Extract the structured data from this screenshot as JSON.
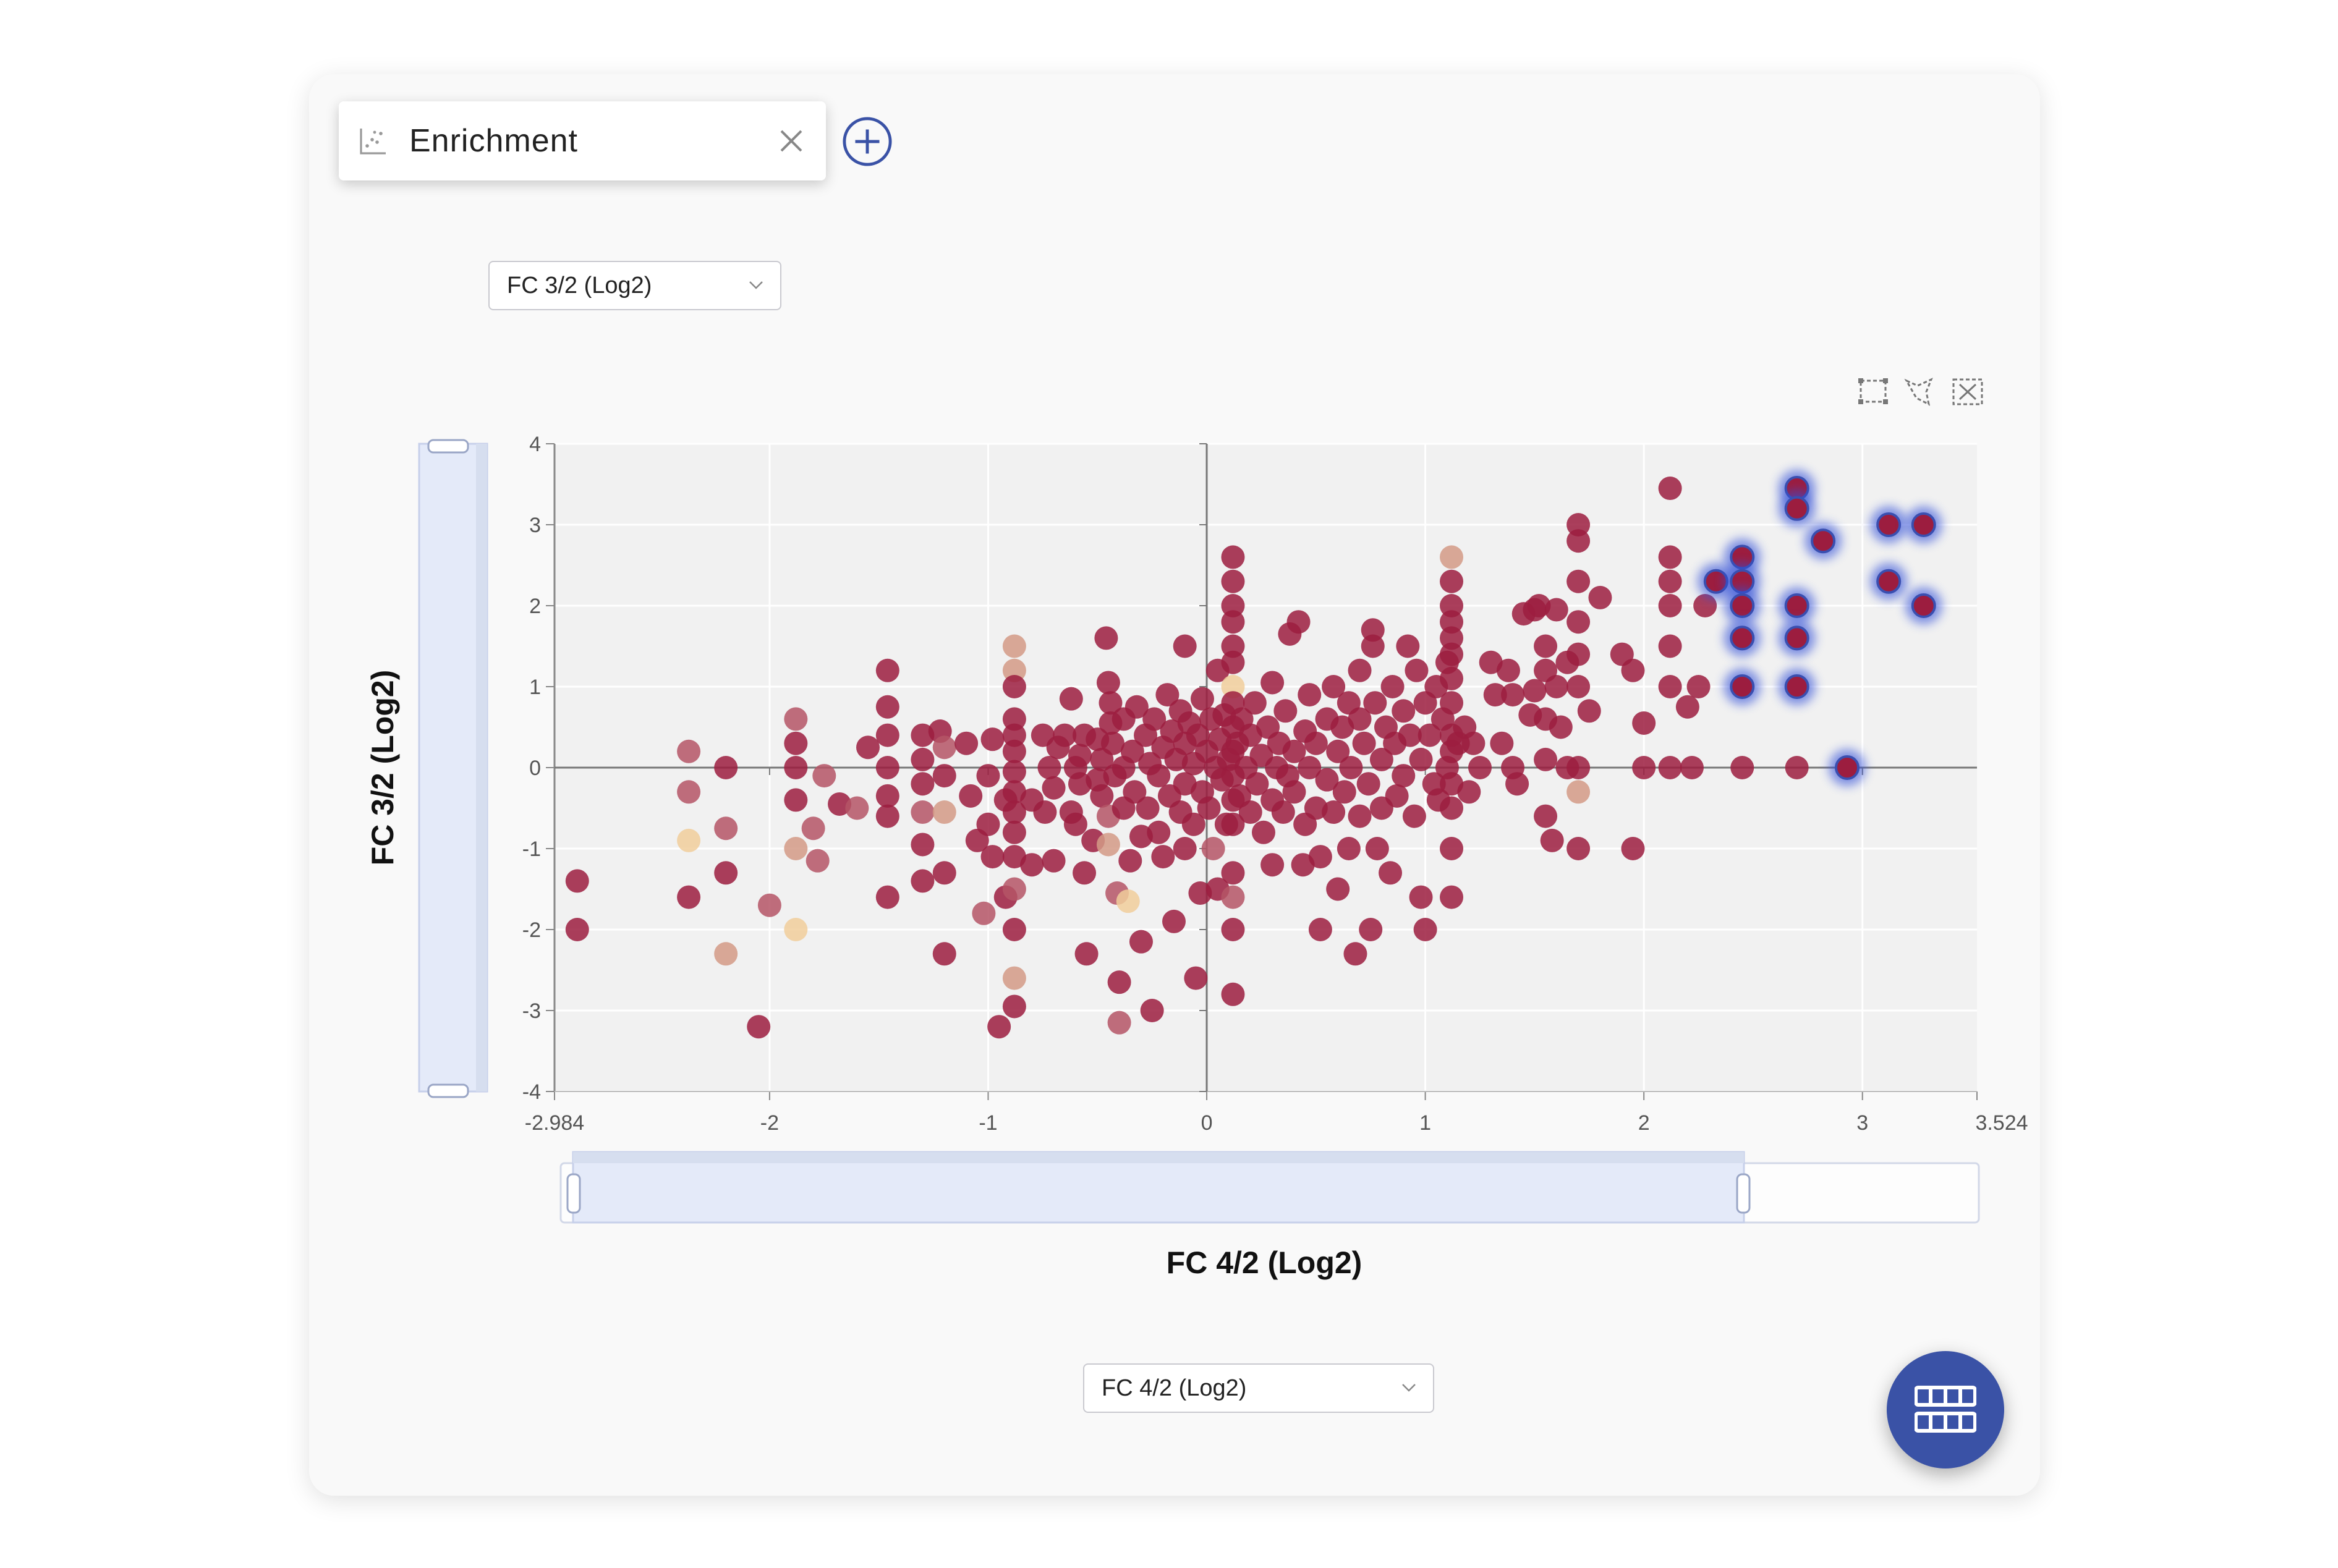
{
  "tab": {
    "title": "Enrichment",
    "icon": "scatter-chart-icon",
    "close_icon": "close-icon"
  },
  "add_tab_icon": "plus-circle-icon",
  "y_selector": {
    "value": "FC 3/2 (Log2)"
  },
  "x_selector": {
    "value": "FC 4/2 (Log2)"
  },
  "toolbar_icons": [
    "box-select-icon",
    "lasso-select-icon",
    "clear-selection-icon"
  ],
  "fab_icon": "table-view-icon",
  "colors": {
    "accent": "#3a52a6",
    "zoom_fill": "#e4eaf9",
    "selected_glow": "#3050d8"
  },
  "chart_data": {
    "type": "scatter",
    "xlabel": "FC 4/2 (Log2)",
    "ylabel": "FC 3/2 (Log2)",
    "xlim": [
      -2.984,
      3.524
    ],
    "ylim": [
      -4,
      4
    ],
    "x_ticks": [
      "-2.984",
      "-2",
      "-1",
      "0",
      "1",
      "2",
      "3",
      "3.524"
    ],
    "y_ticks": [
      "4",
      "3",
      "2",
      "1",
      "0",
      "-1",
      "-2",
      "-3",
      "-4"
    ],
    "grid": true,
    "x_zoom_range": [
      -2.92,
      2.45
    ],
    "y_zoom_range": [
      -4,
      4
    ],
    "color_scale": [
      "#f1ce9b",
      "#d39a86",
      "#b55566",
      "#9c1d3f"
    ],
    "points": [
      [
        -2.88,
        -1.4,
        3
      ],
      [
        -2.88,
        -2.0,
        3
      ],
      [
        -2.37,
        0.2,
        2
      ],
      [
        -2.37,
        -0.3,
        2
      ],
      [
        -2.37,
        -0.9,
        0
      ],
      [
        -2.37,
        -1.6,
        3
      ],
      [
        -2.2,
        0,
        3
      ],
      [
        -2.2,
        -0.75,
        2
      ],
      [
        -2.2,
        -1.3,
        3
      ],
      [
        -2.2,
        -2.3,
        1
      ],
      [
        -2.05,
        -3.2,
        3
      ],
      [
        -2.0,
        -1.7,
        2
      ],
      [
        -1.88,
        0.6,
        2
      ],
      [
        -1.88,
        0.3,
        3
      ],
      [
        -1.88,
        0,
        3
      ],
      [
        -1.88,
        -0.4,
        3
      ],
      [
        -1.88,
        -1.0,
        1
      ],
      [
        -1.88,
        -2.0,
        0
      ],
      [
        -1.8,
        -0.75,
        2
      ],
      [
        -1.78,
        -1.15,
        2
      ],
      [
        -1.75,
        -0.1,
        2
      ],
      [
        -1.68,
        -0.45,
        3
      ],
      [
        -1.6,
        -0.5,
        2
      ],
      [
        -1.55,
        0.25,
        3
      ],
      [
        -1.46,
        1.2,
        3
      ],
      [
        -1.46,
        0.75,
        3
      ],
      [
        -1.46,
        0.4,
        3
      ],
      [
        -1.46,
        0,
        3
      ],
      [
        -1.46,
        -0.35,
        3
      ],
      [
        -1.46,
        -0.6,
        3
      ],
      [
        -1.46,
        -1.6,
        3
      ],
      [
        -1.3,
        0.4,
        3
      ],
      [
        -1.3,
        0.1,
        3
      ],
      [
        -1.3,
        -0.2,
        3
      ],
      [
        -1.3,
        -0.55,
        2
      ],
      [
        -1.3,
        -0.95,
        3
      ],
      [
        -1.3,
        -1.4,
        3
      ],
      [
        -1.22,
        0.45,
        3
      ],
      [
        -1.2,
        0.25,
        2
      ],
      [
        -1.2,
        -0.1,
        3
      ],
      [
        -1.2,
        -0.55,
        1
      ],
      [
        -1.2,
        -1.3,
        3
      ],
      [
        -1.2,
        -2.3,
        3
      ],
      [
        -1.1,
        0.3,
        3
      ],
      [
        -1.08,
        -0.35,
        3
      ],
      [
        -1.05,
        -0.9,
        3
      ],
      [
        -1.02,
        -1.8,
        2
      ],
      [
        -1.0,
        -0.1,
        3
      ],
      [
        -1.0,
        -0.7,
        3
      ],
      [
        -0.98,
        0.35,
        3
      ],
      [
        -0.98,
        -1.1,
        3
      ],
      [
        -0.95,
        -3.2,
        3
      ],
      [
        -0.92,
        -1.6,
        3
      ],
      [
        -0.92,
        -0.4,
        3
      ],
      [
        -0.88,
        1.5,
        1
      ],
      [
        -0.88,
        1.2,
        1
      ],
      [
        -0.88,
        1.0,
        3
      ],
      [
        -0.88,
        0.6,
        3
      ],
      [
        -0.88,
        0.4,
        3
      ],
      [
        -0.88,
        0.2,
        3
      ],
      [
        -0.88,
        -0.05,
        3
      ],
      [
        -0.88,
        -0.3,
        3
      ],
      [
        -0.88,
        -0.55,
        3
      ],
      [
        -0.88,
        -0.8,
        3
      ],
      [
        -0.88,
        -1.1,
        3
      ],
      [
        -0.88,
        -1.5,
        2
      ],
      [
        -0.88,
        -2.0,
        3
      ],
      [
        -0.88,
        -2.6,
        1
      ],
      [
        -0.88,
        -2.95,
        3
      ],
      [
        -0.8,
        -0.4,
        3
      ],
      [
        -0.8,
        -1.2,
        3
      ],
      [
        -0.75,
        0.4,
        3
      ],
      [
        -0.74,
        -0.55,
        3
      ],
      [
        -0.72,
        0,
        3
      ],
      [
        -0.7,
        -0.25,
        3
      ],
      [
        -0.7,
        -1.15,
        3
      ],
      [
        -0.68,
        0.25,
        3
      ],
      [
        -0.65,
        0.4,
        3
      ],
      [
        -0.62,
        -0.55,
        3
      ],
      [
        -0.62,
        0.85,
        3
      ],
      [
        -0.6,
        0,
        3
      ],
      [
        -0.6,
        -0.7,
        3
      ],
      [
        -0.58,
        -0.2,
        3
      ],
      [
        -0.58,
        0.15,
        3
      ],
      [
        -0.56,
        0.4,
        3
      ],
      [
        -0.56,
        -1.3,
        3
      ],
      [
        -0.55,
        -2.3,
        3
      ],
      [
        -0.52,
        -0.9,
        3
      ],
      [
        -0.5,
        0.35,
        3
      ],
      [
        -0.5,
        -0.15,
        3
      ],
      [
        -0.48,
        -0.35,
        3
      ],
      [
        -0.48,
        0.1,
        3
      ],
      [
        -0.45,
        -0.6,
        2
      ],
      [
        -0.45,
        -0.95,
        1
      ],
      [
        -0.44,
        0.55,
        3
      ],
      [
        -0.43,
        0.3,
        3
      ],
      [
        -0.42,
        -0.1,
        3
      ],
      [
        -0.41,
        -1.55,
        2
      ],
      [
        -0.4,
        -2.65,
        3
      ],
      [
        -0.4,
        -3.15,
        2
      ],
      [
        -0.45,
        1.05,
        3
      ],
      [
        -0.46,
        1.6,
        3
      ],
      [
        -0.44,
        0.8,
        3
      ],
      [
        -0.38,
        0,
        3
      ],
      [
        -0.38,
        -0.5,
        3
      ],
      [
        -0.38,
        0.6,
        3
      ],
      [
        -0.36,
        -1.65,
        0
      ],
      [
        -0.35,
        -1.15,
        3
      ],
      [
        -0.34,
        0.2,
        3
      ],
      [
        -0.33,
        -0.3,
        3
      ],
      [
        -0.32,
        0.75,
        3
      ],
      [
        -0.3,
        -0.85,
        3
      ],
      [
        -0.3,
        -2.15,
        3
      ],
      [
        -0.28,
        0.4,
        3
      ],
      [
        -0.27,
        -0.5,
        3
      ],
      [
        -0.26,
        0.05,
        3
      ],
      [
        -0.25,
        -3.0,
        3
      ],
      [
        -0.24,
        0.6,
        3
      ],
      [
        -0.22,
        -0.1,
        3
      ],
      [
        -0.22,
        -0.8,
        3
      ],
      [
        -0.2,
        0.25,
        3
      ],
      [
        -0.2,
        -1.1,
        3
      ],
      [
        -0.18,
        0.9,
        3
      ],
      [
        -0.17,
        -0.35,
        3
      ],
      [
        -0.16,
        0.45,
        3
      ],
      [
        -0.15,
        -1.9,
        3
      ],
      [
        -0.14,
        0.1,
        3
      ],
      [
        -0.12,
        -0.55,
        3
      ],
      [
        -0.12,
        0.7,
        3
      ],
      [
        -0.1,
        -0.2,
        3
      ],
      [
        -0.1,
        0.3,
        3
      ],
      [
        -0.1,
        -1.0,
        3
      ],
      [
        -0.1,
        1.5,
        3
      ],
      [
        -0.08,
        0.55,
        3
      ],
      [
        -0.06,
        -0.7,
        3
      ],
      [
        -0.06,
        0.05,
        3
      ],
      [
        -0.05,
        -2.6,
        3
      ],
      [
        -0.04,
        0.4,
        3
      ],
      [
        -0.03,
        -1.55,
        3
      ],
      [
        -0.02,
        -0.3,
        3
      ],
      [
        -0.02,
        0.85,
        3
      ],
      [
        0,
        0.2,
        3
      ],
      [
        0.01,
        -0.5,
        3
      ],
      [
        0.02,
        0.6,
        3
      ],
      [
        0.03,
        -1.0,
        2
      ],
      [
        0.04,
        0,
        3
      ],
      [
        0.05,
        1.2,
        3
      ],
      [
        0.05,
        -1.5,
        3
      ],
      [
        0.06,
        0.35,
        3
      ],
      [
        0.07,
        -0.15,
        3
      ],
      [
        0.08,
        0.65,
        3
      ],
      [
        0.09,
        -0.7,
        3
      ],
      [
        0.1,
        0.1,
        3
      ],
      [
        0.12,
        1.0,
        0
      ],
      [
        0.12,
        2.6,
        3
      ],
      [
        0.12,
        2.3,
        3
      ],
      [
        0.12,
        2.0,
        3
      ],
      [
        0.12,
        1.8,
        3
      ],
      [
        0.12,
        1.5,
        3
      ],
      [
        0.12,
        1.3,
        3
      ],
      [
        0.12,
        0.8,
        3
      ],
      [
        0.12,
        0.5,
        3
      ],
      [
        0.12,
        0.2,
        3
      ],
      [
        0.12,
        -0.1,
        3
      ],
      [
        0.12,
        -0.4,
        3
      ],
      [
        0.12,
        -0.7,
        3
      ],
      [
        0.12,
        -1.3,
        3
      ],
      [
        0.12,
        -1.6,
        2
      ],
      [
        0.12,
        -2.0,
        3
      ],
      [
        0.12,
        -2.8,
        3
      ],
      [
        0.14,
        0.3,
        3
      ],
      [
        0.15,
        -0.35,
        3
      ],
      [
        0.16,
        0.6,
        3
      ],
      [
        0.18,
        0,
        3
      ],
      [
        0.2,
        -0.55,
        3
      ],
      [
        0.2,
        0.4,
        3
      ],
      [
        0.22,
        0.8,
        3
      ],
      [
        0.23,
        -0.2,
        3
      ],
      [
        0.25,
        0.15,
        3
      ],
      [
        0.26,
        -0.8,
        3
      ],
      [
        0.28,
        0.5,
        3
      ],
      [
        0.3,
        -0.4,
        3
      ],
      [
        0.3,
        1.05,
        3
      ],
      [
        0.3,
        -1.2,
        3
      ],
      [
        0.32,
        0,
        3
      ],
      [
        0.33,
        0.3,
        3
      ],
      [
        0.35,
        -0.55,
        3
      ],
      [
        0.36,
        0.7,
        3
      ],
      [
        0.37,
        -0.1,
        3
      ],
      [
        0.38,
        1.65,
        3
      ],
      [
        0.4,
        -0.3,
        3
      ],
      [
        0.4,
        0.2,
        3
      ],
      [
        0.42,
        1.8,
        3
      ],
      [
        0.44,
        -1.2,
        3
      ],
      [
        0.45,
        0.45,
        3
      ],
      [
        0.45,
        -0.7,
        3
      ],
      [
        0.47,
        0,
        3
      ],
      [
        0.47,
        0.9,
        3
      ],
      [
        0.5,
        -0.5,
        3
      ],
      [
        0.5,
        0.3,
        3
      ],
      [
        0.52,
        -2.0,
        3
      ],
      [
        0.52,
        -1.1,
        3
      ],
      [
        0.55,
        0.6,
        3
      ],
      [
        0.55,
        -0.15,
        3
      ],
      [
        0.58,
        1.0,
        3
      ],
      [
        0.58,
        -0.55,
        3
      ],
      [
        0.6,
        0.2,
        3
      ],
      [
        0.6,
        -1.5,
        3
      ],
      [
        0.62,
        0.5,
        3
      ],
      [
        0.63,
        -0.3,
        3
      ],
      [
        0.65,
        0.8,
        3
      ],
      [
        0.65,
        -1.0,
        3
      ],
      [
        0.66,
        0,
        3
      ],
      [
        0.68,
        -2.3,
        3
      ],
      [
        0.7,
        0.6,
        3
      ],
      [
        0.7,
        -0.6,
        3
      ],
      [
        0.7,
        1.2,
        3
      ],
      [
        0.72,
        0.3,
        3
      ],
      [
        0.74,
        -0.2,
        3
      ],
      [
        0.75,
        -2.0,
        3
      ],
      [
        0.76,
        1.7,
        3
      ],
      [
        0.76,
        1.5,
        3
      ],
      [
        0.77,
        0.8,
        3
      ],
      [
        0.78,
        -1.0,
        3
      ],
      [
        0.8,
        0.1,
        3
      ],
      [
        0.8,
        -0.5,
        3
      ],
      [
        0.82,
        0.5,
        3
      ],
      [
        0.84,
        -1.3,
        3
      ],
      [
        0.85,
        1.0,
        3
      ],
      [
        0.86,
        0.3,
        3
      ],
      [
        0.87,
        -0.35,
        3
      ],
      [
        0.9,
        0.7,
        3
      ],
      [
        0.9,
        -0.1,
        3
      ],
      [
        0.92,
        1.5,
        3
      ],
      [
        0.93,
        0.4,
        3
      ],
      [
        0.95,
        -0.6,
        3
      ],
      [
        0.96,
        1.2,
        3
      ],
      [
        0.98,
        0.1,
        3
      ],
      [
        0.98,
        -1.6,
        3
      ],
      [
        1.0,
        -2.0,
        3
      ],
      [
        1.0,
        0.8,
        3
      ],
      [
        1.02,
        0.4,
        3
      ],
      [
        1.04,
        -0.2,
        3
      ],
      [
        1.05,
        1.0,
        3
      ],
      [
        1.06,
        -0.4,
        3
      ],
      [
        1.08,
        0.6,
        3
      ],
      [
        1.1,
        0,
        3
      ],
      [
        1.1,
        1.3,
        3
      ],
      [
        1.12,
        2.6,
        1
      ],
      [
        1.12,
        2.3,
        3
      ],
      [
        1.12,
        2.0,
        3
      ],
      [
        1.12,
        1.8,
        3
      ],
      [
        1.12,
        1.6,
        3
      ],
      [
        1.12,
        1.4,
        3
      ],
      [
        1.12,
        1.1,
        3
      ],
      [
        1.12,
        0.8,
        3
      ],
      [
        1.12,
        0.4,
        3
      ],
      [
        1.12,
        0.2,
        3
      ],
      [
        1.12,
        -0.2,
        3
      ],
      [
        1.12,
        -0.5,
        3
      ],
      [
        1.12,
        -1.0,
        3
      ],
      [
        1.12,
        -1.6,
        3
      ],
      [
        1.15,
        0.3,
        3
      ],
      [
        1.18,
        0.5,
        3
      ],
      [
        1.2,
        -0.3,
        3
      ],
      [
        1.22,
        0.3,
        3
      ],
      [
        1.25,
        0,
        3
      ],
      [
        1.3,
        1.3,
        3
      ],
      [
        1.32,
        0.9,
        3
      ],
      [
        1.35,
        0.3,
        3
      ],
      [
        1.38,
        1.2,
        3
      ],
      [
        1.4,
        0.9,
        3
      ],
      [
        1.4,
        0,
        3
      ],
      [
        1.42,
        -0.2,
        3
      ],
      [
        1.45,
        1.9,
        3
      ],
      [
        1.48,
        0.65,
        3
      ],
      [
        1.5,
        0.95,
        3
      ],
      [
        1.5,
        1.95,
        3
      ],
      [
        1.52,
        2.0,
        3
      ],
      [
        1.55,
        1.5,
        3
      ],
      [
        1.55,
        1.2,
        3
      ],
      [
        1.55,
        0.6,
        3
      ],
      [
        1.55,
        0.1,
        3
      ],
      [
        1.55,
        -0.6,
        3
      ],
      [
        1.58,
        -0.9,
        3
      ],
      [
        1.6,
        1.0,
        3
      ],
      [
        1.6,
        1.95,
        3
      ],
      [
        1.62,
        0.5,
        3
      ],
      [
        1.65,
        1.3,
        3
      ],
      [
        1.65,
        0,
        3
      ],
      [
        1.7,
        3.0,
        3
      ],
      [
        1.7,
        2.8,
        3
      ],
      [
        1.7,
        2.3,
        3
      ],
      [
        1.7,
        1.8,
        3
      ],
      [
        1.7,
        1.4,
        3
      ],
      [
        1.7,
        1.0,
        3
      ],
      [
        1.7,
        0,
        3
      ],
      [
        1.7,
        -1.0,
        3
      ],
      [
        1.7,
        -0.3,
        1
      ],
      [
        1.75,
        0.7,
        3
      ],
      [
        1.8,
        2.1,
        3
      ],
      [
        1.9,
        1.4,
        3
      ],
      [
        1.95,
        1.2,
        3
      ],
      [
        1.95,
        -1.0,
        3
      ],
      [
        2.0,
        0.55,
        3
      ],
      [
        2.0,
        0,
        3
      ],
      [
        2.12,
        3.45,
        3
      ],
      [
        2.12,
        2.6,
        3
      ],
      [
        2.12,
        2.3,
        3
      ],
      [
        2.12,
        2.0,
        3
      ],
      [
        2.12,
        1.5,
        3
      ],
      [
        2.12,
        1.0,
        3
      ],
      [
        2.12,
        0,
        3
      ],
      [
        2.2,
        0.75,
        3
      ],
      [
        2.22,
        0,
        3
      ],
      [
        2.25,
        1.0,
        3
      ],
      [
        2.28,
        2.0,
        3
      ],
      [
        2.45,
        0,
        3
      ],
      [
        2.7,
        0,
        3
      ]
    ],
    "selected_points": [
      [
        2.33,
        2.3,
        3
      ],
      [
        2.45,
        2.6,
        3
      ],
      [
        2.45,
        2.3,
        3
      ],
      [
        2.45,
        2.0,
        3
      ],
      [
        2.45,
        1.6,
        3
      ],
      [
        2.45,
        1.0,
        3
      ],
      [
        2.7,
        3.45,
        3
      ],
      [
        2.7,
        3.2,
        3
      ],
      [
        2.7,
        2.0,
        3
      ],
      [
        2.7,
        1.6,
        3
      ],
      [
        2.7,
        1.0,
        3
      ],
      [
        2.82,
        2.8,
        3
      ],
      [
        2.93,
        0,
        3
      ],
      [
        3.12,
        3.0,
        3
      ],
      [
        3.12,
        2.3,
        3
      ],
      [
        3.28,
        3.0,
        3
      ],
      [
        3.28,
        2.0,
        3
      ]
    ]
  }
}
